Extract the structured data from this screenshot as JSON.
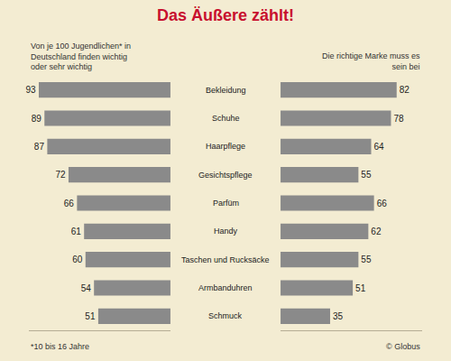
{
  "chart_data": {
    "type": "bar",
    "orientation": "horizontal",
    "title": "Das Äußere zählt!",
    "categories": [
      "Bekleidung",
      "Schuhe",
      "Haarpflege",
      "Gesichtspflege",
      "Parfüm",
      "Handy",
      "Taschen und Rucksäcke",
      "Armbanduhren",
      "Schmuck"
    ],
    "series": [
      {
        "name": "Von je 100 Jugendlichen* in Deutschland finden wichtig oder sehr wichtig",
        "color": "#8a8a8a",
        "values": [
          93,
          89,
          87,
          72,
          66,
          61,
          60,
          54,
          51
        ]
      },
      {
        "name": "Die richtige Marke muss es sein bei",
        "color": "#8a8a8a",
        "values": [
          82,
          78,
          64,
          55,
          66,
          62,
          55,
          51,
          35
        ]
      }
    ],
    "xlim": [
      0,
      100
    ],
    "data_labels": true,
    "tick_labels": false,
    "annotations": [
      "*10 bis 16 Jahre",
      "© Globus"
    ]
  }
}
